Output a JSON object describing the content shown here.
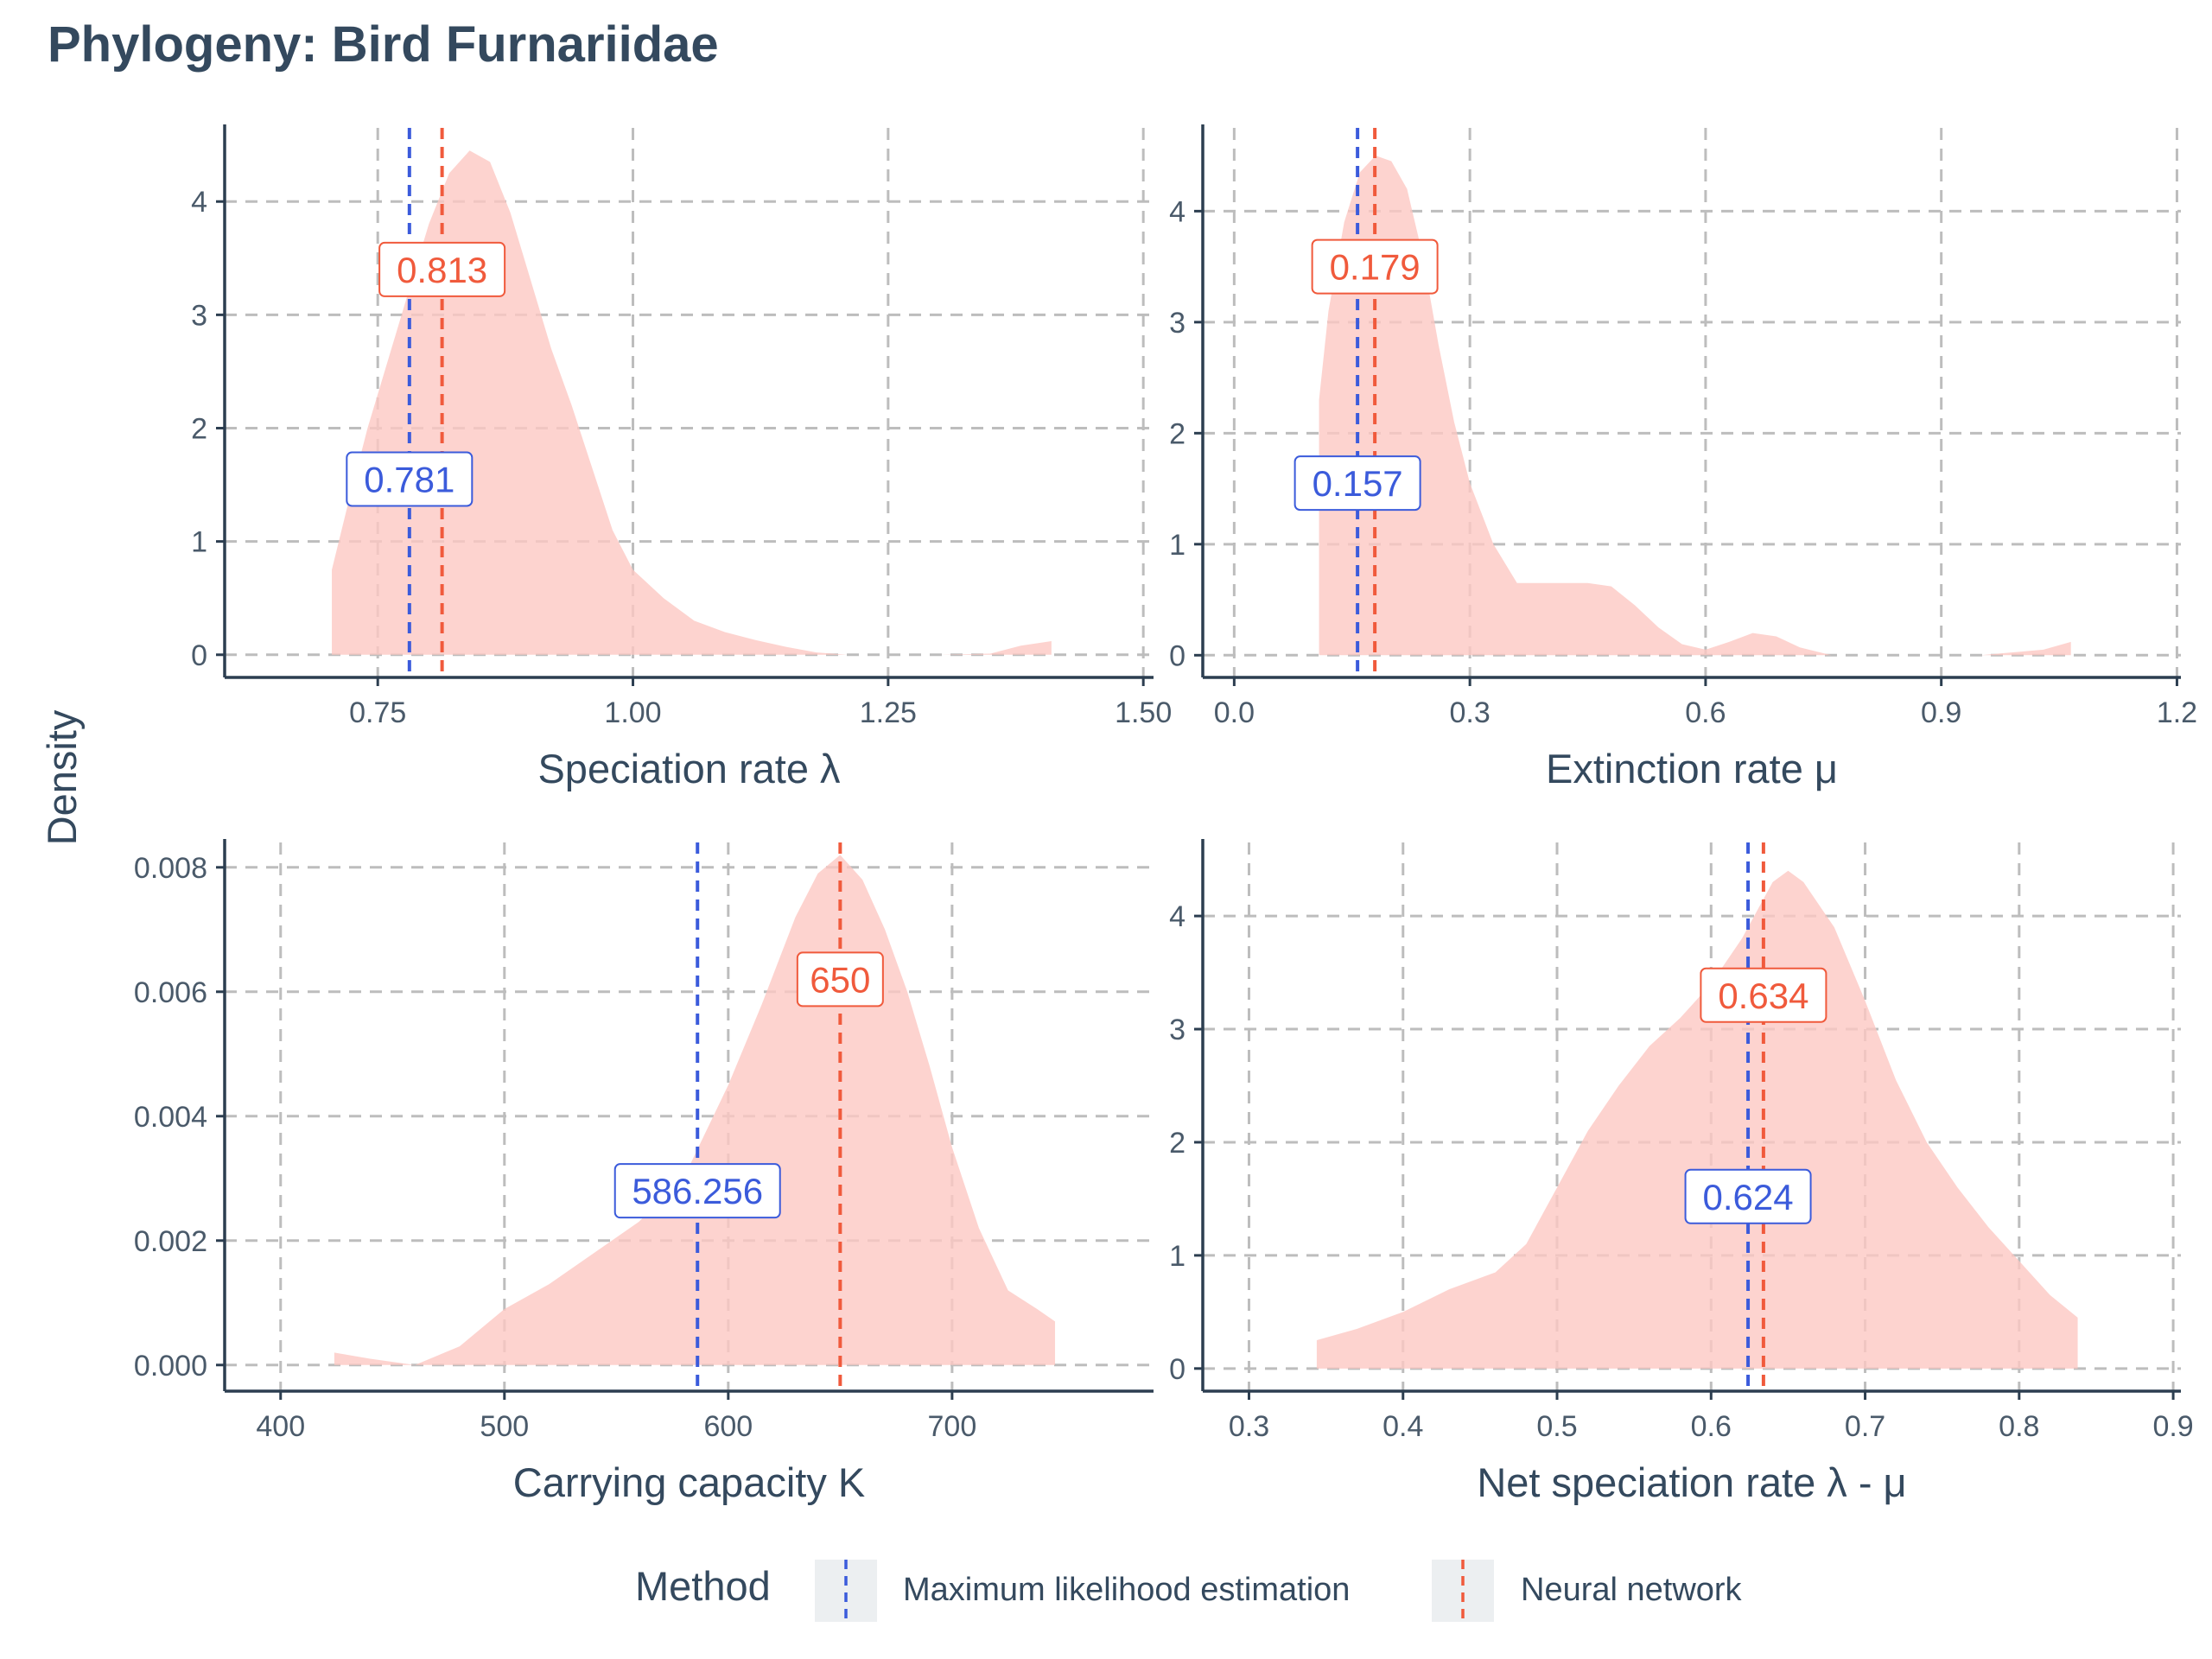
{
  "title": "Phylogeny: Bird Furnariidae",
  "y_axis_label": "Density",
  "colors": {
    "mle": "#3b5bdb",
    "nn": "#f05a3c",
    "density_fill": "#fcc8c3",
    "grid": "#bdbdbd",
    "axis": "#2c3e50",
    "legend_key_bg": "#eceff1"
  },
  "legend": {
    "title": "Method",
    "items": [
      {
        "label": "Maximum likelihood estimation",
        "color": "#3b5bdb"
      },
      {
        "label": "Neural network",
        "color": "#f05a3c"
      }
    ]
  },
  "chart_data": [
    {
      "type": "area",
      "xlabel": "Speciation rate λ",
      "xlim": [
        0.6,
        1.51
      ],
      "ylim": [
        -0.2,
        4.65
      ],
      "xticks": [
        0.75,
        1.0,
        1.25,
        1.5
      ],
      "xtick_labels": [
        "0.75",
        "1.00",
        "1.25",
        "1.50"
      ],
      "yticks": [
        0,
        1,
        2,
        3,
        4
      ],
      "ytick_labels": [
        "0",
        "1",
        "2",
        "3",
        "4"
      ],
      "density": {
        "x": [
          0.705,
          0.72,
          0.74,
          0.76,
          0.78,
          0.8,
          0.82,
          0.84,
          0.86,
          0.88,
          0.9,
          0.92,
          0.94,
          0.96,
          0.98,
          1.0,
          1.03,
          1.06,
          1.09,
          1.12,
          1.15,
          1.18,
          1.21,
          1.25,
          1.3,
          1.35,
          1.38,
          1.41
        ],
        "y": [
          0.75,
          1.3,
          2.0,
          2.6,
          3.2,
          3.8,
          4.25,
          4.45,
          4.35,
          3.9,
          3.3,
          2.7,
          2.2,
          1.65,
          1.1,
          0.75,
          0.5,
          0.3,
          0.2,
          0.13,
          0.07,
          0.02,
          0.0,
          0.0,
          0.0,
          0.01,
          0.08,
          0.12
        ]
      },
      "mle": 0.781,
      "mle_label": "0.781",
      "nn": 0.813,
      "nn_label": "0.813",
      "mle_label_y": 1.55,
      "nn_label_y": 3.4
    },
    {
      "type": "area",
      "xlabel": "Extinction rate μ",
      "xlim": [
        -0.04,
        1.205
      ],
      "ylim": [
        -0.2,
        4.75
      ],
      "xticks": [
        0.0,
        0.3,
        0.6,
        0.9,
        1.2
      ],
      "xtick_labels": [
        "0.0",
        "0.3",
        "0.6",
        "0.9",
        "1.2"
      ],
      "yticks": [
        0,
        1,
        2,
        3,
        4
      ],
      "ytick_labels": [
        "0",
        "1",
        "2",
        "3",
        "4"
      ],
      "density": {
        "x": [
          0.108,
          0.12,
          0.14,
          0.16,
          0.18,
          0.2,
          0.22,
          0.24,
          0.26,
          0.28,
          0.3,
          0.33,
          0.36,
          0.39,
          0.42,
          0.45,
          0.48,
          0.51,
          0.54,
          0.57,
          0.6,
          0.63,
          0.66,
          0.69,
          0.72,
          0.76,
          0.85,
          0.95,
          1.03,
          1.065
        ],
        "y": [
          2.3,
          3.1,
          3.9,
          4.35,
          4.5,
          4.45,
          4.2,
          3.6,
          2.8,
          2.1,
          1.55,
          1.0,
          0.65,
          0.65,
          0.65,
          0.65,
          0.62,
          0.45,
          0.25,
          0.1,
          0.05,
          0.12,
          0.2,
          0.17,
          0.07,
          0.0,
          0.0,
          0.0,
          0.05,
          0.12
        ]
      },
      "mle": 0.157,
      "mle_label": "0.157",
      "nn": 0.179,
      "nn_label": "0.179",
      "mle_label_y": 1.55,
      "nn_label_y": 3.5
    },
    {
      "type": "area",
      "xlabel": "Carrying capacity K",
      "xlim": [
        375,
        790
      ],
      "ylim": [
        -0.00042,
        0.0084
      ],
      "xticks": [
        400,
        500,
        600,
        700
      ],
      "xtick_labels": [
        "400",
        "500",
        "600",
        "700"
      ],
      "yticks": [
        0,
        0.002,
        0.004,
        0.006,
        0.008
      ],
      "ytick_labels": [
        "0.000",
        "0.002",
        "0.004",
        "0.006",
        "0.008"
      ],
      "density": {
        "x": [
          424,
          440,
          460,
          480,
          500,
          520,
          540,
          560,
          580,
          600,
          615,
          630,
          640,
          650,
          660,
          670,
          680,
          690,
          700,
          712,
          725,
          738,
          746
        ],
        "y": [
          0.0002,
          0.0001,
          0.0,
          0.0003,
          0.0009,
          0.0013,
          0.0018,
          0.0023,
          0.003,
          0.0045,
          0.0058,
          0.0072,
          0.0079,
          0.0082,
          0.0078,
          0.007,
          0.006,
          0.0048,
          0.0035,
          0.0022,
          0.0012,
          0.0009,
          0.0007
        ]
      },
      "mle": 586.256,
      "mle_label": "586.256",
      "nn": 650,
      "nn_label": "650",
      "mle_label_y": 0.0028,
      "nn_label_y": 0.0062
    },
    {
      "type": "area",
      "xlabel": "Net speciation rate λ - μ",
      "xlim": [
        0.27,
        0.905
      ],
      "ylim": [
        -0.2,
        4.65
      ],
      "xticks": [
        0.3,
        0.4,
        0.5,
        0.6,
        0.7,
        0.8,
        0.9
      ],
      "xtick_labels": [
        "0.3",
        "0.4",
        "0.5",
        "0.6",
        "0.7",
        "0.8",
        "0.9"
      ],
      "yticks": [
        0,
        1,
        2,
        3,
        4
      ],
      "ytick_labels": [
        "0",
        "1",
        "2",
        "3",
        "4"
      ],
      "density": {
        "x": [
          0.344,
          0.37,
          0.4,
          0.43,
          0.46,
          0.48,
          0.5,
          0.52,
          0.54,
          0.56,
          0.58,
          0.6,
          0.62,
          0.64,
          0.65,
          0.66,
          0.68,
          0.7,
          0.72,
          0.74,
          0.76,
          0.78,
          0.8,
          0.82,
          0.838
        ],
        "y": [
          0.25,
          0.35,
          0.5,
          0.7,
          0.85,
          1.1,
          1.6,
          2.1,
          2.5,
          2.85,
          3.1,
          3.4,
          3.8,
          4.3,
          4.4,
          4.3,
          3.9,
          3.25,
          2.55,
          2.0,
          1.6,
          1.25,
          0.95,
          0.65,
          0.45
        ]
      },
      "mle": 0.624,
      "mle_label": "0.624",
      "nn": 0.634,
      "nn_label": "0.634",
      "mle_label_y": 1.52,
      "nn_label_y": 3.3
    }
  ]
}
